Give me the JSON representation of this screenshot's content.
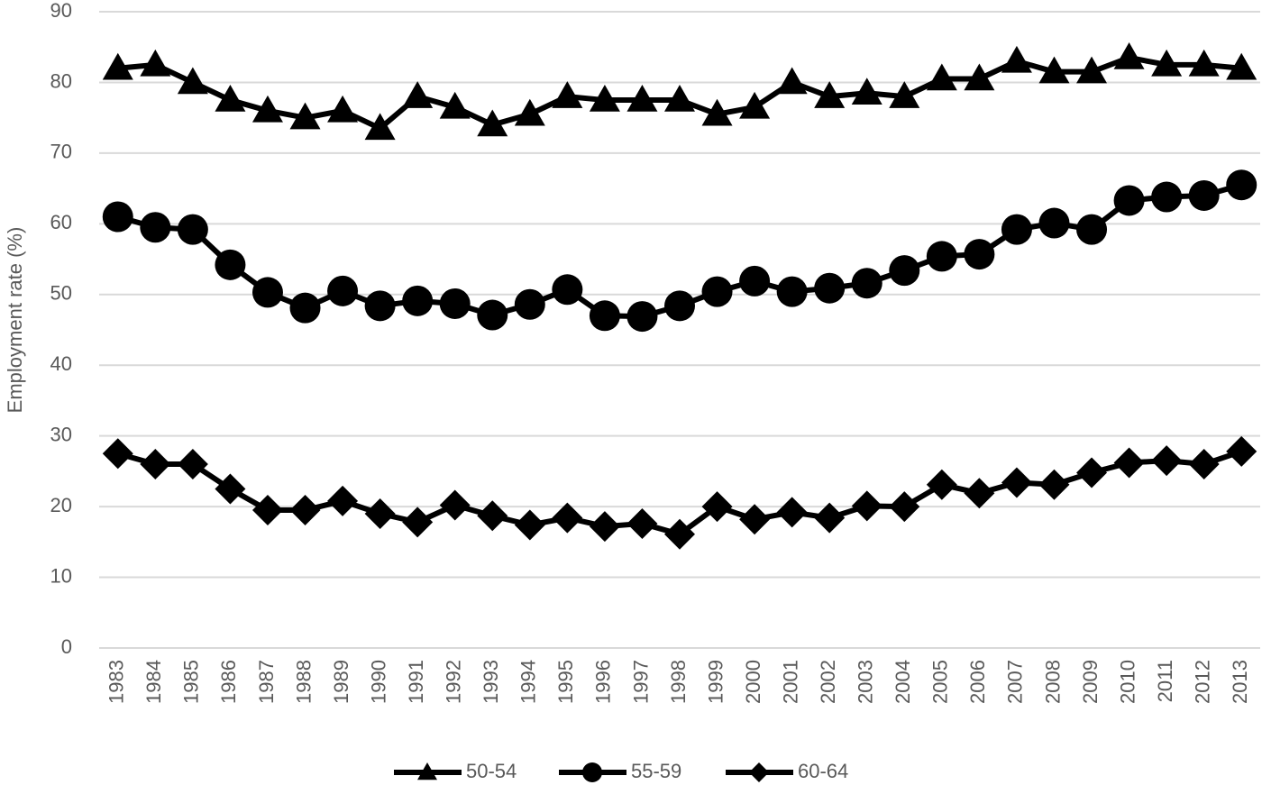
{
  "chart_data": {
    "type": "line",
    "y_label": "Employment rate (%)",
    "categories": [
      "1983",
      "1984",
      "1985",
      "1986",
      "1987",
      "1988",
      "1989",
      "1990",
      "1991",
      "1992",
      "1993",
      "1994",
      "1995",
      "1996",
      "1997",
      "1998",
      "1999",
      "2000",
      "2001",
      "2002",
      "2003",
      "2004",
      "2005",
      "2006",
      "2007",
      "2008",
      "2009",
      "2010",
      "2011",
      "2012",
      "2013"
    ],
    "series": [
      {
        "name": "50-54",
        "color": "#000000",
        "marker": "triangle",
        "values": [
          82,
          82.5,
          80,
          77.5,
          76,
          75,
          76,
          73.5,
          78,
          76.5,
          74,
          75.5,
          78,
          77.5,
          77.5,
          77.5,
          75.5,
          76.5,
          80,
          78,
          78.5,
          78,
          80.5,
          80.5,
          83,
          81.5,
          81.5,
          83.5,
          82.5,
          82.5,
          82
        ]
      },
      {
        "name": "55-59",
        "color": "#000000",
        "marker": "circle",
        "values": [
          61,
          59.5,
          59.2,
          54.2,
          50.3,
          48.1,
          50.5,
          48.4,
          49.1,
          48.7,
          47.1,
          48.6,
          50.7,
          47.0,
          46.9,
          48.4,
          50.4,
          51.9,
          50.4,
          50.9,
          51.6,
          53.4,
          55.4,
          55.7,
          59.2,
          60.1,
          59.2,
          63.3,
          63.8,
          64.0,
          65.5
        ]
      },
      {
        "name": "60-64",
        "color": "#000000",
        "marker": "diamond",
        "values": [
          27.5,
          26,
          26,
          22.5,
          19.5,
          19.5,
          20.8,
          19,
          17.8,
          20.2,
          18.7,
          17.4,
          18.4,
          17.2,
          17.6,
          16.1,
          20,
          18.2,
          19.2,
          18.4,
          20.1,
          20,
          23.1,
          21.9,
          23.4,
          23.1,
          24.8,
          26.2,
          26.5,
          26,
          27.8
        ]
      }
    ],
    "ylim": [
      0,
      90
    ],
    "yticks": [
      0,
      10,
      20,
      30,
      40,
      50,
      60,
      70,
      80,
      90
    ],
    "grid": true,
    "legend": "bottom"
  }
}
